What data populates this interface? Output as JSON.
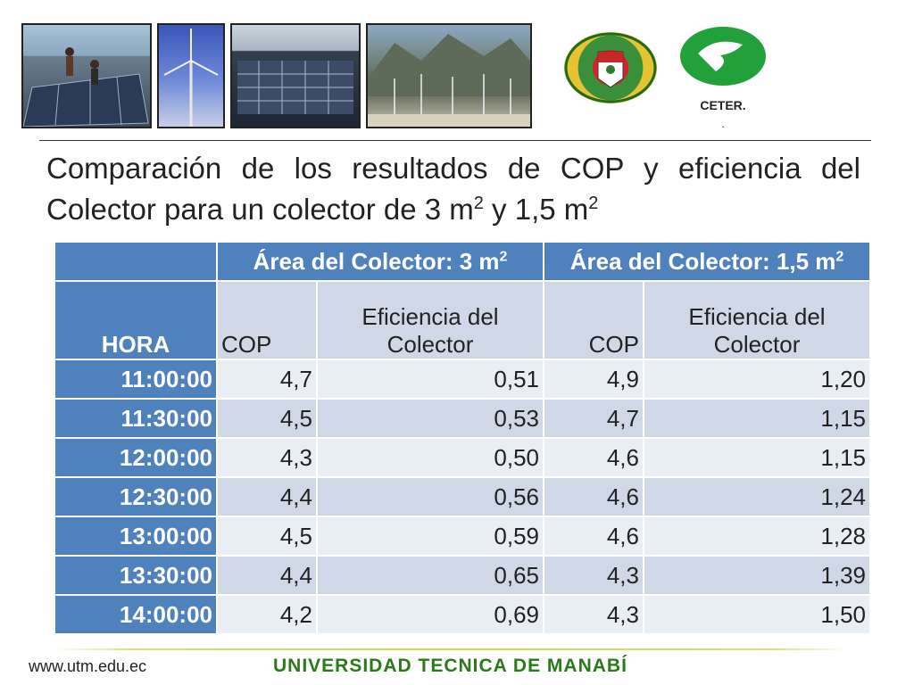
{
  "header": {
    "logo_caption": "CETER.",
    "logo_caption_dot": "."
  },
  "title": {
    "line_prefix": "Comparación de los resultados de COP y eficiencia del Colector para un colector de 3 m",
    "sup1": "2",
    "mid": " y 1,5 m",
    "sup2": "2"
  },
  "table": {
    "group_headers": [
      {
        "label": "Área del Colector: 3 m",
        "sup": "2"
      },
      {
        "label": "Área del Colector: 1,5 m",
        "sup": "2"
      }
    ],
    "column_headers": {
      "hora": "HORA",
      "cop": "COP",
      "eff_line1": "Eficiencia del",
      "eff_line2": "Colector"
    },
    "rows": [
      {
        "hora": "11:00:00",
        "cop3": "4,7",
        "eff3": "0,51",
        "cop15": "4,9",
        "eff15": "1,20"
      },
      {
        "hora": "11:30:00",
        "cop3": "4,5",
        "eff3": "0,53",
        "cop15": "4,7",
        "eff15": "1,15"
      },
      {
        "hora": "12:00:00",
        "cop3": "4,3",
        "eff3": "0,50",
        "cop15": "4,6",
        "eff15": "1,15"
      },
      {
        "hora": "12:30:00",
        "cop3": "4,4",
        "eff3": "0,56",
        "cop15": "4,6",
        "eff15": "1,24"
      },
      {
        "hora": "13:00:00",
        "cop3": "4,5",
        "eff3": "0,59",
        "cop15": "4,6",
        "eff15": "1,28"
      },
      {
        "hora": "13:30:00",
        "cop3": "4,4",
        "eff3": "0,65",
        "cop15": "4,3",
        "eff15": "1,39"
      },
      {
        "hora": "14:00:00",
        "cop3": "4,2",
        "eff3": "0,69",
        "cop15": "4,3",
        "eff15": "1,50"
      }
    ]
  },
  "footer": {
    "url": "www.utm.edu.ec",
    "university": "UNIVERSIDAD TECNICA DE MANABÍ"
  },
  "colors": {
    "header_blue": "#4f81bd",
    "row_light": "#e9edf4",
    "row_dark": "#d0d8e8",
    "footer_green": "#2a7a1a"
  }
}
